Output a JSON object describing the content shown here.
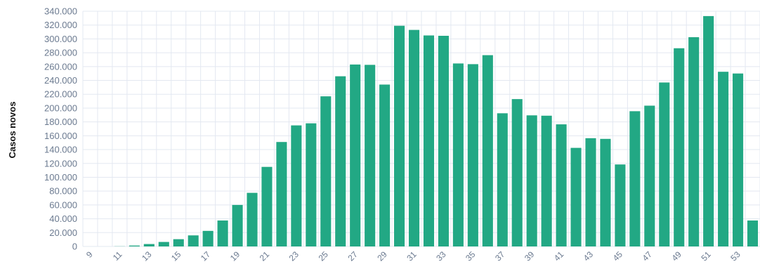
{
  "chart_data": {
    "type": "bar",
    "title": "",
    "xlabel": "",
    "ylabel": "Casos novos",
    "ylim": [
      0,
      340000
    ],
    "y_ticks": [
      0,
      20000,
      40000,
      60000,
      80000,
      100000,
      120000,
      140000,
      160000,
      180000,
      200000,
      220000,
      240000,
      260000,
      280000,
      300000,
      320000,
      340000
    ],
    "y_tick_labels": [
      "0",
      "20.000",
      "40.000",
      "60.000",
      "80.000",
      "100.000",
      "120.000",
      "140.000",
      "160.000",
      "180.000",
      "200.000",
      "220.000",
      "240.000",
      "260.000",
      "280.000",
      "300.000",
      "320.000",
      "340.000"
    ],
    "categories": [
      "9",
      "10",
      "11",
      "12",
      "13",
      "14",
      "15",
      "16",
      "17",
      "18",
      "19",
      "20",
      "21",
      "22",
      "23",
      "24",
      "25",
      "26",
      "27",
      "28",
      "29",
      "30",
      "31",
      "32",
      "33",
      "34",
      "35",
      "36",
      "37",
      "38",
      "39",
      "40",
      "41",
      "42",
      "43",
      "44",
      "45",
      "46",
      "47",
      "48",
      "49",
      "50",
      "51",
      "52",
      "53",
      "54"
    ],
    "x_tick_labels_shown": [
      "9",
      "11",
      "13",
      "15",
      "17",
      "19",
      "21",
      "23",
      "25",
      "27",
      "29",
      "31",
      "33",
      "35",
      "37",
      "39",
      "41",
      "43",
      "45",
      "47",
      "49",
      "51",
      "53"
    ],
    "values": [
      0,
      0,
      200,
      1300,
      3500,
      6500,
      10500,
      16000,
      22500,
      37500,
      60000,
      77500,
      115000,
      151000,
      175000,
      178000,
      217000,
      246000,
      263000,
      262500,
      234000,
      319000,
      313000,
      305000,
      304500,
      264500,
      263500,
      276500,
      192500,
      213000,
      189500,
      189000,
      176500,
      142500,
      156500,
      155500,
      118500,
      195500,
      203500,
      237000,
      286500,
      302500,
      333000,
      252500,
      250000,
      37500
    ],
    "grid": true,
    "legend": "none",
    "bar_color": "#22a884",
    "grid_color": "#e3e8f1",
    "label_color": "#6b7a90"
  }
}
